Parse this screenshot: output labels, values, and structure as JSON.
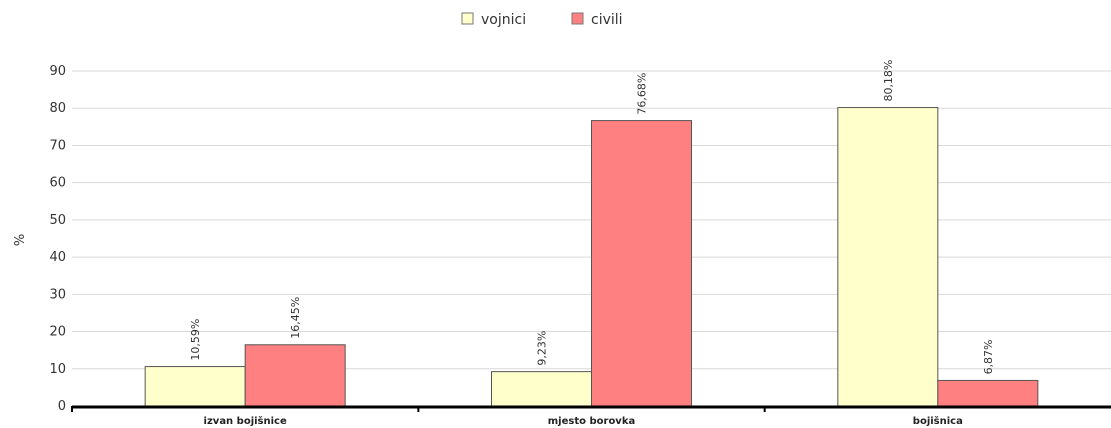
{
  "chart_data": {
    "type": "bar",
    "title": "",
    "xlabel": "",
    "ylabel": "%",
    "ylim": [
      0,
      90
    ],
    "yticks": [
      0,
      10,
      20,
      30,
      40,
      50,
      60,
      70,
      80,
      90
    ],
    "grid": true,
    "legend": "top-center",
    "categories": [
      "izvan bojišnice",
      "mjesto borovka",
      "bojišnica"
    ],
    "series": [
      {
        "name": "vojnici",
        "color": "#ffffcc",
        "values": [
          10.59,
          9.23,
          80.18
        ],
        "labels": [
          "10,59%",
          "9,23%",
          "80,18%"
        ]
      },
      {
        "name": "civili",
        "color": "#ff8080",
        "values": [
          16.45,
          76.68,
          6.87
        ],
        "labels": [
          "16,45%",
          "76,68%",
          "6,87%"
        ]
      }
    ]
  }
}
